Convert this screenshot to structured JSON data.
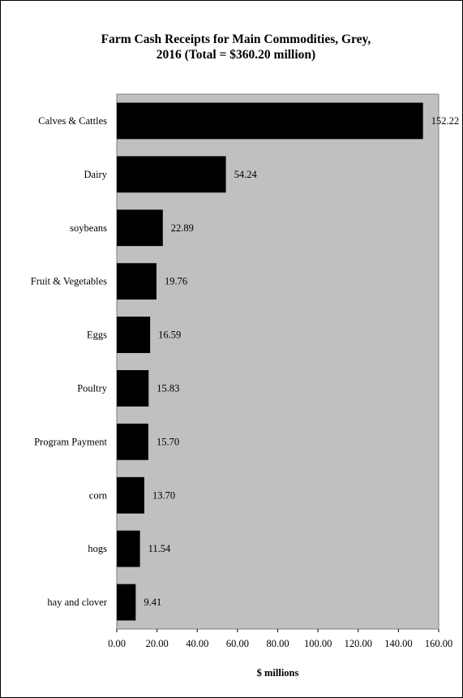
{
  "chart_data": {
    "type": "bar",
    "orientation": "horizontal",
    "title_lines": [
      "Farm Cash Receipts for Main Commodities, Grey,",
      "2016 (Total = $360.20 million)"
    ],
    "categories": [
      "Calves & Cattles",
      "Dairy",
      "soybeans",
      "Fruit & Vegetables",
      "Eggs",
      "Poultry",
      "Program Payment",
      "corn",
      "hogs",
      "hay and clover"
    ],
    "values": [
      152.22,
      54.24,
      22.89,
      19.76,
      16.59,
      15.83,
      15.7,
      13.7,
      11.54,
      9.41
    ],
    "value_labels": [
      "152.22",
      "54.24",
      "22.89",
      "19.76",
      "16.59",
      "15.83",
      "15.70",
      "13.70",
      "11.54",
      "9.41"
    ],
    "x_ticks": [
      "0.00",
      "20.00",
      "40.00",
      "60.00",
      "80.00",
      "100.00",
      "120.00",
      "140.00",
      "160.00"
    ],
    "xlim": [
      0,
      160
    ],
    "xlabel": "$ millions",
    "ylabel": "",
    "grid": false,
    "colors": {
      "bar": "#000000",
      "plot_background": "#c0c0c0",
      "page_background": "#ffffff"
    }
  }
}
